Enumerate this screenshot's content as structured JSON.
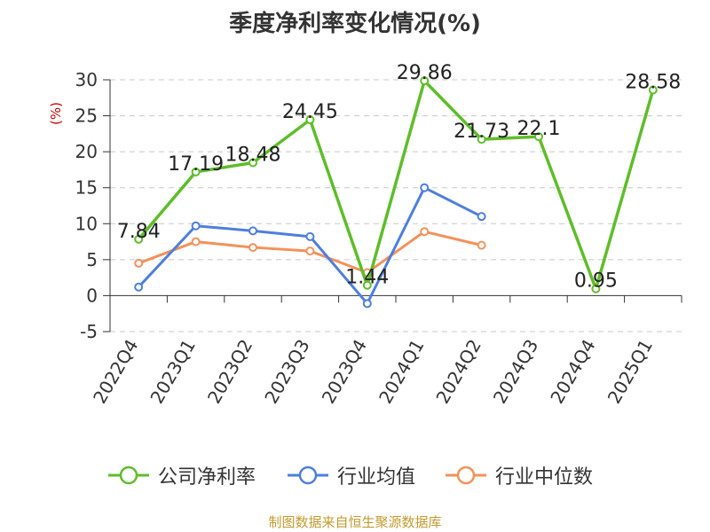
{
  "chart_data": {
    "type": "line",
    "title": "季度净利率变化情况(%)",
    "ylabel": "(%)",
    "ylim": [
      -5,
      30
    ],
    "yticks": [
      -5,
      0,
      5,
      10,
      15,
      20,
      25,
      30
    ],
    "grid": true,
    "legend_position": "bottom",
    "categories": [
      "2022Q4",
      "2023Q1",
      "2023Q2",
      "2023Q3",
      "2023Q4",
      "2024Q1",
      "2024Q2",
      "2024Q3",
      "2024Q4",
      "2025Q1"
    ],
    "series": [
      {
        "name": "公司净利率",
        "color": "#5fbd2a",
        "values": [
          7.84,
          17.19,
          18.48,
          24.45,
          1.44,
          29.86,
          21.73,
          22.1,
          0.95,
          28.58
        ],
        "labels": [
          "7.84",
          "17.19",
          "18.48",
          "24.45",
          "1.44",
          "29.86",
          "21.73",
          "22.1",
          "0.95",
          "28.58"
        ]
      },
      {
        "name": "行业均值",
        "color": "#4e7fde",
        "values": [
          1.2,
          9.7,
          9.0,
          8.2,
          -1.1,
          15.0,
          11.0,
          null,
          null,
          null
        ]
      },
      {
        "name": "行业中位数",
        "color": "#f4915a",
        "values": [
          4.5,
          7.5,
          6.7,
          6.2,
          3.2,
          8.9,
          7.0,
          null,
          null,
          null
        ]
      }
    ]
  },
  "footer": {
    "source": "制图数据来自恒生聚源数据库"
  }
}
